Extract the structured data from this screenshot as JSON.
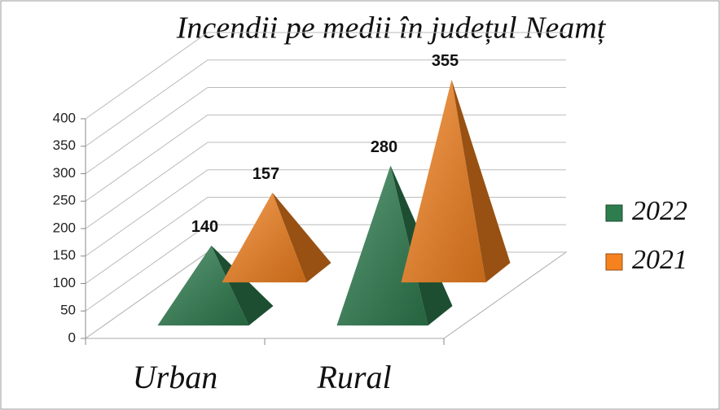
{
  "chart_data": {
    "type": "pyramid3d",
    "title": "Incendii pe medii în județul Neamț",
    "categories": [
      "Urban",
      "Rural"
    ],
    "series": [
      {
        "name": "2022",
        "color": "#2e7d4f",
        "values": [
          140,
          280
        ]
      },
      {
        "name": "2021",
        "color": "#f5821f",
        "values": [
          157,
          355
        ]
      }
    ],
    "ylim": [
      0,
      400
    ],
    "yticks": [
      0,
      50,
      100,
      150,
      200,
      250,
      300,
      350,
      400
    ],
    "grid": true,
    "legend": "right"
  }
}
